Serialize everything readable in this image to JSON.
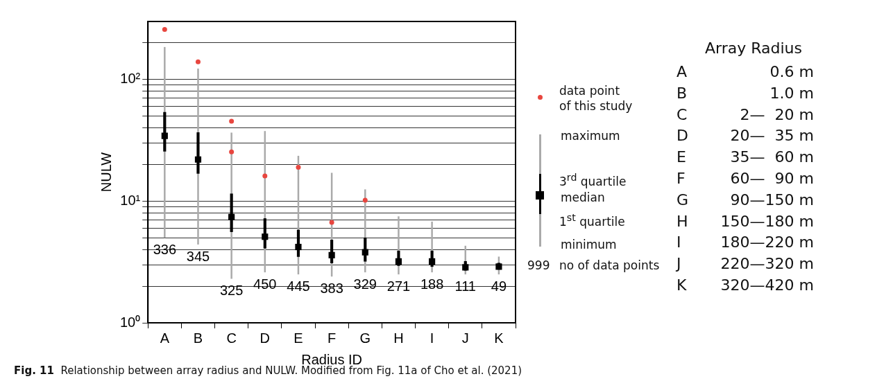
{
  "chart_data": {
    "type": "box",
    "xlabel": "Radius ID",
    "ylabel": "NULW",
    "categories": [
      "A",
      "B",
      "C",
      "D",
      "E",
      "F",
      "G",
      "H",
      "I",
      "J",
      "K"
    ],
    "log": "y",
    "ylim": [
      1,
      300
    ],
    "yticks": [
      {
        "value": 1,
        "label": "10⁰"
      },
      {
        "value": 2,
        "label": null
      },
      {
        "value": 3,
        "label": null
      },
      {
        "value": 4,
        "label": null
      },
      {
        "value": 5,
        "label": null
      },
      {
        "value": 6,
        "label": null
      },
      {
        "value": 7,
        "label": null
      },
      {
        "value": 8,
        "label": null
      },
      {
        "value": 9,
        "label": null
      },
      {
        "value": 10,
        "label": "10¹"
      },
      {
        "value": 20,
        "label": null
      },
      {
        "value": 30,
        "label": null
      },
      {
        "value": 40,
        "label": null
      },
      {
        "value": 50,
        "label": null
      },
      {
        "value": 60,
        "label": null
      },
      {
        "value": 70,
        "label": null
      },
      {
        "value": 80,
        "label": null
      },
      {
        "value": 90,
        "label": null
      },
      {
        "value": 100,
        "label": "10²"
      },
      {
        "value": 200,
        "label": null
      }
    ],
    "grid": "y",
    "marker": "circle",
    "series": [
      {
        "color": "#000000",
        "boxes": [
          {
            "low": 5,
            "q1": 25.7,
            "median": 34.4,
            "q3": 53.8,
            "high": 185
          },
          {
            "low": 4.4,
            "q1": 16.9,
            "median": 22,
            "q3": 36.6,
            "high": 123
          },
          {
            "low": 2.3,
            "q1": 5.6,
            "median": 7.4,
            "q3": 11.5,
            "high": 36.6
          },
          {
            "low": 2.6,
            "q1": 4.1,
            "median": 5.1,
            "q3": 7.2,
            "high": 37.7
          },
          {
            "low": 2.5,
            "q1": 3.5,
            "median": 4.2,
            "q3": 5.8,
            "high": 23.6
          },
          {
            "low": 2.4,
            "q1": 3.1,
            "median": 3.6,
            "q3": 4.8,
            "high": 17.1
          },
          {
            "low": 2.6,
            "q1": 3.2,
            "median": 3.8,
            "q3": 5,
            "high": 12.5
          },
          {
            "low": 2.5,
            "q1": 2.95,
            "median": 3.2,
            "q3": 3.9,
            "high": 7.5
          },
          {
            "low": 2.6,
            "q1": 2.9,
            "median": 3.2,
            "q3": 3.9,
            "high": 6.8
          },
          {
            "low": 2.5,
            "q1": 2.7,
            "median": 2.86,
            "q3": 3.2,
            "high": 4.3
          },
          {
            "low": 2.5,
            "q1": 2.75,
            "median": 2.9,
            "q3": 3.1,
            "high": 3.5
          }
        ]
      },
      {
        "type": "scatter",
        "color": "#e8463f",
        "x": [
          "A",
          "B",
          "C",
          "C",
          "D",
          "E",
          "F",
          "G"
        ],
        "values": [
          258,
          140,
          45.4,
          25.4,
          16.1,
          19,
          6.7,
          10.2
        ]
      }
    ],
    "annotations": [
      "336",
      "345",
      "325",
      "450",
      "445",
      "383",
      "329",
      "271",
      "188",
      "111",
      "49",
      "data point\nof this study",
      "maximum",
      "3$^{rd}$ quartile",
      "median",
      "1$^{st}$ quartile",
      "minimum",
      "999",
      "no of data points",
      "Array Radius",
      "A",
      "0.6 m",
      "B",
      "1.0 m",
      "C",
      "2—  20 m",
      "D",
      "20—  35 m",
      "E",
      "35—  60 m",
      "F",
      "60—  90 m",
      "G",
      "90—150 m",
      "H",
      "150—180 m",
      "I",
      "180—220 m",
      "J",
      "220—320 m",
      "K",
      "320—420 m",
      "Fig. 11",
      "Relationship between array radius and NULW. Modified from Fig. 11a of Cho et al. (2021)"
    ]
  }
}
